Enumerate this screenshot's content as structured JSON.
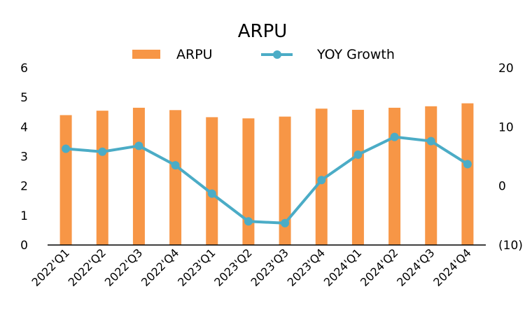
{
  "chart_data": {
    "type": "bar+line",
    "title": "ARPU",
    "categories": [
      "2022'Q1",
      "2022'Q2",
      "2022'Q3",
      "2022'Q4",
      "2023'Q1",
      "2023'Q2",
      "2023'Q3",
      "2023'Q4",
      "2024'Q1",
      "2024'Q2",
      "2024'Q3",
      "2024'Q4"
    ],
    "series": [
      {
        "name": "ARPU",
        "kind": "bar",
        "axis": "left",
        "color": "#F79646",
        "values": [
          4.4,
          4.55,
          4.65,
          4.57,
          4.33,
          4.29,
          4.35,
          4.62,
          4.58,
          4.65,
          4.7,
          4.8
        ]
      },
      {
        "name": "YOY Growth",
        "kind": "line",
        "axis": "right",
        "color": "#4BACC6",
        "values": [
          6.3,
          5.8,
          6.8,
          3.5,
          -1.3,
          -6.0,
          -6.3,
          1.0,
          5.3,
          8.3,
          7.6,
          3.7
        ]
      }
    ],
    "y_left": {
      "min": 0,
      "max": 6,
      "ticks": [
        "0",
        "1",
        "2",
        "3",
        "4",
        "5",
        "6"
      ]
    },
    "y_right": {
      "min": -10,
      "max": 20,
      "ticks": [
        {
          "value": -10,
          "label": "(10)",
          "color": "#FF0000"
        },
        {
          "value": 0,
          "label": "0"
        },
        {
          "value": 10,
          "label": "10"
        },
        {
          "value": 20,
          "label": "20"
        }
      ]
    },
    "grid": false,
    "legend_position": "top"
  }
}
